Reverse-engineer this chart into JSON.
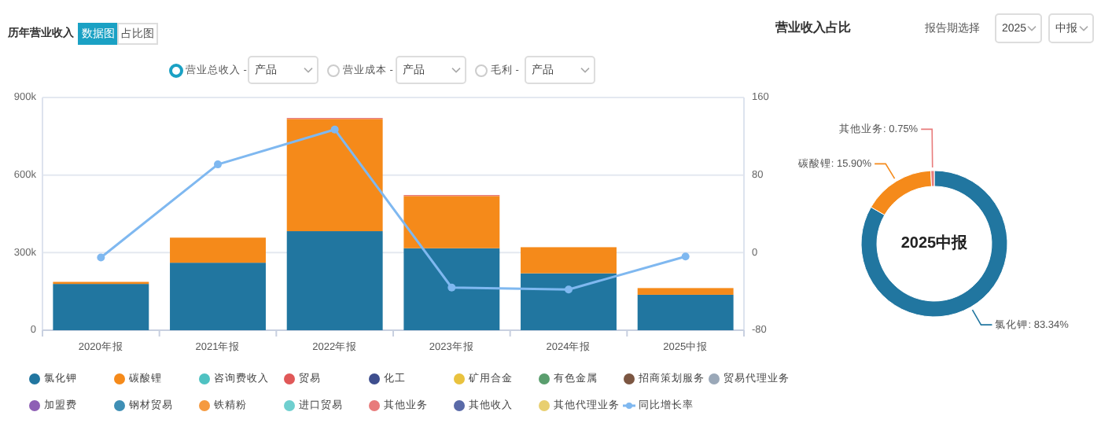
{
  "chart_data": [
    {
      "type": "bar",
      "title": "历年营业收入",
      "stacked": true,
      "categories": [
        "2020年报",
        "2021年报",
        "2022年报",
        "2023年报",
        "2024年报",
        "2025中报"
      ],
      "series": [
        {
          "name": "氯化钾",
          "color": "#2176a0",
          "values": [
            179000,
            261000,
            383000,
            317000,
            220000,
            137000
          ]
        },
        {
          "name": "碳酸锂",
          "color": "#f58a1a",
          "values": [
            8000,
            97000,
            434000,
            202000,
            101000,
            26000
          ]
        },
        {
          "name": "咨询费收入",
          "color": "#4fc2c2",
          "values": [
            null,
            null,
            null,
            null,
            null,
            null
          ]
        },
        {
          "name": "贸易",
          "color": "#e05858",
          "values": [
            null,
            null,
            null,
            null,
            null,
            null
          ]
        },
        {
          "name": "化工",
          "color": "#3e4e8e",
          "values": [
            null,
            null,
            null,
            null,
            null,
            null
          ]
        },
        {
          "name": "矿用合金",
          "color": "#e9c23e",
          "values": [
            null,
            null,
            null,
            null,
            null,
            null
          ]
        },
        {
          "name": "有色金属",
          "color": "#5a9e6e",
          "values": [
            null,
            null,
            null,
            null,
            null,
            null
          ]
        },
        {
          "name": "招商策划服务",
          "color": "#7c5642",
          "values": [
            null,
            null,
            null,
            null,
            null,
            null
          ]
        },
        {
          "name": "贸易代理业务",
          "color": "#9aa8b8",
          "values": [
            null,
            null,
            null,
            null,
            null,
            null
          ]
        },
        {
          "name": "加盟费",
          "color": "#8e5fb5",
          "values": [
            null,
            null,
            null,
            null,
            null,
            null
          ]
        },
        {
          "name": "钢材贸易",
          "color": "#3f8fb5",
          "values": [
            null,
            null,
            null,
            null,
            null,
            null
          ]
        },
        {
          "name": "铁精粉",
          "color": "#f59a40",
          "values": [
            null,
            null,
            null,
            null,
            null,
            null
          ]
        },
        {
          "name": "进口贸易",
          "color": "#6fcfcf",
          "values": [
            null,
            null,
            null,
            null,
            null,
            null
          ]
        },
        {
          "name": "其他业务",
          "color": "#e87b7b",
          "values": [
            null,
            null,
            4000,
            4000,
            null,
            null
          ]
        },
        {
          "name": "其他收入",
          "color": "#5a6aa8",
          "values": [
            null,
            null,
            null,
            null,
            null,
            null
          ]
        },
        {
          "name": "其他代理业务",
          "color": "#e8cf70",
          "values": [
            null,
            null,
            null,
            null,
            null,
            null
          ]
        },
        {
          "name": "同比增长率",
          "type": "line",
          "axis": "y2",
          "color": "#7fb8f0",
          "values": [
            -5,
            91,
            127,
            -36,
            -38,
            -4
          ]
        }
      ],
      "ylim": [
        0,
        900000
      ],
      "yticks": [
        0,
        {
          "value": 300000,
          "label": "300k"
        },
        {
          "value": 600000,
          "label": "600k"
        },
        {
          "value": 900000,
          "label": "900k"
        }
      ],
      "y2lim": [
        -80,
        160
      ],
      "y2ticks": [
        -80,
        0,
        80,
        160
      ],
      "grid": "y",
      "legend": "bottom",
      "marker": "circle",
      "annotations": [
        "数据图",
        "占比图",
        "营业总收入 -",
        "产品",
        "营业成本 -",
        "产品",
        "毛利 -",
        "产品"
      ]
    },
    {
      "type": "donut",
      "title": "营业收入占比",
      "categories": [
        "氯化钾",
        "碳酸锂",
        "其他业务"
      ],
      "values": [
        83.34,
        15.9,
        0.75
      ],
      "colors": [
        "#2176a0",
        "#f58a1a",
        "#e87b7b"
      ],
      "value_labels": [
        "83.34%",
        "15.90%",
        "0.75%"
      ],
      "annotations": [
        "2025中报",
        "报告期选择",
        "2025",
        "中报"
      ]
    }
  ]
}
